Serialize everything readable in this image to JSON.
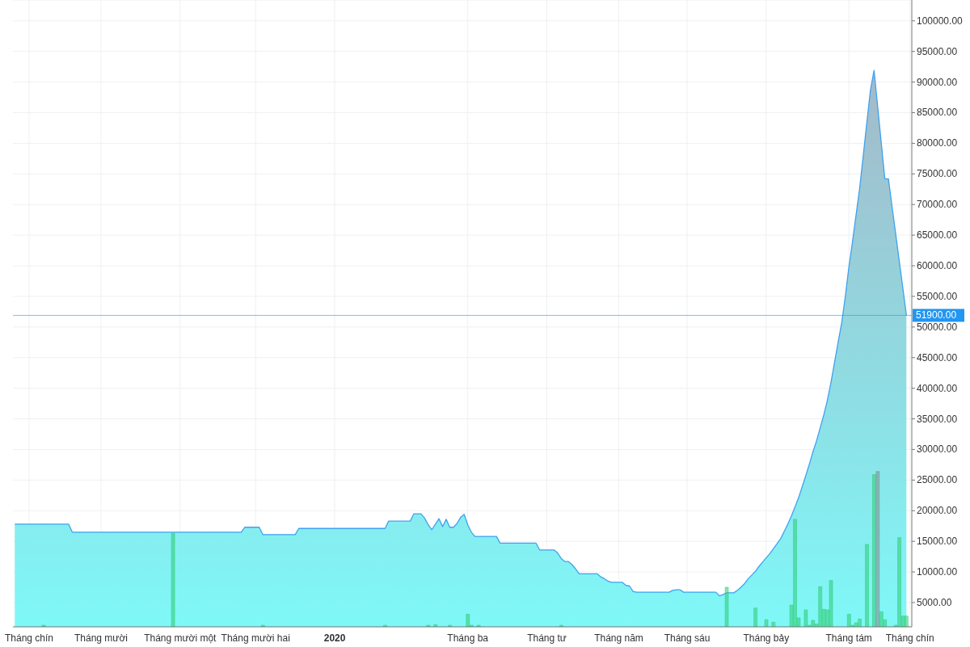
{
  "chart_data": {
    "type": "area",
    "categories": [
      null,
      null,
      null,
      null,
      "Tháng chín",
      null,
      null,
      null,
      null,
      null,
      null,
      null,
      null,
      null,
      null,
      null,
      null,
      null,
      null,
      null,
      null,
      null,
      null,
      null,
      "Tháng mười",
      null,
      null,
      null,
      null,
      null,
      null,
      null,
      null,
      null,
      null,
      null,
      null,
      null,
      null,
      null,
      null,
      null,
      null,
      null,
      null,
      null,
      "Tháng mười một",
      null,
      null,
      null,
      null,
      null,
      null,
      null,
      null,
      null,
      null,
      null,
      null,
      null,
      null,
      null,
      null,
      null,
      null,
      null,
      null,
      "Tháng mười hai",
      null,
      null,
      null,
      null,
      null,
      null,
      null,
      null,
      null,
      null,
      null,
      null,
      null,
      null,
      null,
      null,
      null,
      null,
      null,
      null,
      null,
      "2020",
      null,
      null,
      null,
      null,
      null,
      null,
      null,
      null,
      null,
      null,
      null,
      null,
      null,
      null,
      null,
      null,
      null,
      null,
      null,
      null,
      null,
      null,
      null,
      null,
      null,
      null,
      null,
      null,
      null,
      null,
      null,
      null,
      null,
      null,
      null,
      null,
      "Tháng ba",
      null,
      null,
      null,
      null,
      null,
      null,
      null,
      null,
      null,
      null,
      null,
      null,
      null,
      null,
      null,
      null,
      null,
      null,
      null,
      null,
      null,
      "Tháng tư",
      null,
      null,
      null,
      null,
      null,
      null,
      null,
      null,
      null,
      null,
      null,
      null,
      null,
      null,
      null,
      null,
      null,
      null,
      null,
      "Tháng năm",
      null,
      null,
      null,
      null,
      null,
      null,
      null,
      null,
      null,
      null,
      null,
      null,
      null,
      null,
      null,
      null,
      null,
      null,
      "Tháng sáu",
      null,
      null,
      null,
      null,
      null,
      null,
      null,
      null,
      null,
      null,
      null,
      null,
      null,
      null,
      null,
      null,
      null,
      null,
      null,
      null,
      null,
      "Tháng bảy",
      null,
      null,
      null,
      null,
      null,
      null,
      null,
      null,
      null,
      null,
      null,
      null,
      null,
      null,
      null,
      null,
      null,
      null,
      null,
      null,
      null,
      null,
      "Tháng tám",
      null,
      null,
      null,
      null,
      null,
      null,
      null,
      null,
      null,
      null,
      null,
      null,
      null,
      null,
      null,
      null,
      "Tháng chín"
    ],
    "series": [
      {
        "color": "#7ff8f8",
        "values": [
          17800,
          17800,
          17800,
          17800,
          17800,
          17800,
          17800,
          17800,
          17800,
          17800,
          17800,
          17800,
          17800,
          17800,
          17800,
          17800,
          16500,
          16500,
          16500,
          16500,
          16500,
          16500,
          16500,
          16500,
          16500,
          16500,
          16500,
          16500,
          16500,
          16500,
          16500,
          16500,
          16500,
          16500,
          16500,
          16500,
          16500,
          16500,
          16500,
          16500,
          16500,
          16500,
          16500,
          16500,
          16500,
          16500,
          16500,
          16500,
          16500,
          16500,
          16500,
          16500,
          16500,
          16500,
          16500,
          16500,
          16500,
          16500,
          16500,
          16500,
          16500,
          16500,
          16500,
          16500,
          17300,
          17300,
          17300,
          17300,
          17300,
          16100,
          16100,
          16100,
          16100,
          16100,
          16100,
          16100,
          16100,
          16100,
          16100,
          17100,
          17100,
          17100,
          17100,
          17100,
          17100,
          17100,
          17100,
          17100,
          17100,
          17100,
          17100,
          17100,
          17100,
          17100,
          17100,
          17100,
          17100,
          17100,
          17100,
          17100,
          17100,
          17100,
          17100,
          17100,
          18300,
          18300,
          18300,
          18300,
          18300,
          18300,
          18300,
          19500,
          19500,
          19500,
          18800,
          17700,
          16900,
          17800,
          18700,
          17400,
          18600,
          17300,
          17300,
          17900,
          18900,
          19400,
          17700,
          16500,
          15800,
          15800,
          15800,
          15800,
          15800,
          15800,
          15800,
          14700,
          14700,
          14700,
          14700,
          14700,
          14700,
          14700,
          14700,
          14700,
          14700,
          14700,
          13600,
          13600,
          13600,
          13600,
          13600,
          13100,
          12200,
          11700,
          11700,
          11200,
          10500,
          9700,
          9700,
          9700,
          9700,
          9700,
          9700,
          9200,
          8900,
          8500,
          8300,
          8300,
          8300,
          8300,
          7800,
          7700,
          6800,
          6700,
          6700,
          6700,
          6700,
          6700,
          6700,
          6700,
          6700,
          6700,
          6700,
          7000,
          7100,
          7100,
          6700,
          6700,
          6700,
          6700,
          6700,
          6700,
          6700,
          6700,
          6700,
          6700,
          6100,
          6300,
          6600,
          6600,
          6600,
          7000,
          7500,
          8100,
          8900,
          9500,
          10100,
          10900,
          11600,
          12300,
          13000,
          13800,
          14600,
          15400,
          16600,
          17800,
          19100,
          20600,
          22100,
          23900,
          25700,
          27600,
          29600,
          31400,
          33500,
          35600,
          38000,
          40900,
          44200,
          47500,
          50700,
          54900,
          59800,
          63900,
          68300,
          72700,
          78000,
          83400,
          88700,
          91900,
          86000,
          80100,
          74200,
          74200,
          69700,
          65300,
          60800,
          56400,
          51900,
          null
        ]
      },
      {
        "type": "bar",
        "values": [
          null,
          null,
          null,
          null,
          null,
          null,
          null,
          null,
          1300,
          null,
          null,
          null,
          null,
          null,
          null,
          null,
          null,
          null,
          null,
          null,
          null,
          null,
          null,
          null,
          null,
          null,
          null,
          null,
          null,
          null,
          null,
          null,
          null,
          null,
          null,
          null,
          null,
          null,
          null,
          null,
          null,
          null,
          null,
          null,
          16300,
          null,
          null,
          null,
          null,
          null,
          null,
          null,
          null,
          null,
          null,
          null,
          null,
          null,
          null,
          null,
          null,
          null,
          null,
          null,
          null,
          null,
          null,
          null,
          null,
          1300,
          null,
          null,
          null,
          null,
          null,
          null,
          null,
          null,
          null,
          null,
          null,
          null,
          null,
          null,
          null,
          null,
          null,
          null,
          null,
          null,
          null,
          null,
          null,
          null,
          null,
          null,
          null,
          null,
          null,
          null,
          null,
          null,
          null,
          1300,
          null,
          null,
          null,
          null,
          null,
          null,
          null,
          null,
          null,
          null,
          null,
          1300,
          null,
          1400,
          null,
          null,
          null,
          1300,
          null,
          null,
          null,
          null,
          3100,
          1300,
          null,
          1300,
          null,
          null,
          null,
          null,
          null,
          null,
          null,
          null,
          null,
          null,
          null,
          null,
          null,
          null,
          null,
          null,
          null,
          null,
          null,
          null,
          null,
          null,
          1300,
          null,
          null,
          null,
          null,
          null,
          null,
          null,
          null,
          null,
          null,
          null,
          null,
          null,
          null,
          null,
          null,
          null,
          null,
          null,
          null,
          null,
          null,
          null,
          null,
          null,
          null,
          null,
          null,
          null,
          null,
          null,
          null,
          null,
          null,
          null,
          null,
          null,
          null,
          null,
          null,
          null,
          null,
          null,
          null,
          null,
          7500,
          null,
          null,
          null,
          null,
          null,
          null,
          null,
          4100,
          null,
          null,
          2200,
          null,
          1800,
          null,
          null,
          null,
          null,
          4600,
          18600,
          2500,
          null,
          3800,
          1300,
          2100,
          1500,
          7600,
          3900,
          3800,
          8600,
          null,
          null,
          null,
          null,
          3100,
          1300,
          1700,
          2300,
          null,
          14500,
          null,
          25900,
          26400,
          3500,
          2200,
          null,
          null,
          1300,
          15600,
          2800,
          2800,
          null
        ],
        "colors": [
          null,
          null,
          null,
          null,
          null,
          null,
          null,
          null,
          "#2ecc71",
          null,
          null,
          null,
          null,
          null,
          null,
          null,
          null,
          null,
          null,
          null,
          null,
          null,
          null,
          null,
          null,
          null,
          null,
          null,
          null,
          null,
          null,
          null,
          null,
          null,
          null,
          null,
          null,
          null,
          null,
          null,
          null,
          null,
          null,
          null,
          "#2ecc71",
          null,
          null,
          null,
          null,
          null,
          null,
          null,
          null,
          null,
          null,
          null,
          null,
          null,
          null,
          null,
          null,
          null,
          null,
          null,
          null,
          null,
          null,
          null,
          null,
          "#2ecc71",
          null,
          null,
          null,
          null,
          null,
          null,
          null,
          null,
          null,
          null,
          null,
          null,
          null,
          null,
          null,
          null,
          null,
          null,
          null,
          null,
          null,
          null,
          null,
          null,
          null,
          null,
          null,
          null,
          null,
          null,
          null,
          null,
          null,
          "#2ecc71",
          null,
          null,
          null,
          null,
          null,
          null,
          null,
          null,
          null,
          null,
          null,
          "#2ecc71",
          null,
          "#2ecc71",
          null,
          null,
          null,
          "#2ecc71",
          null,
          null,
          null,
          null,
          "#2ecc71",
          "#2ecc71",
          null,
          "#2ecc71",
          null,
          null,
          null,
          null,
          null,
          null,
          null,
          null,
          null,
          null,
          null,
          null,
          null,
          null,
          null,
          null,
          null,
          null,
          null,
          null,
          null,
          null,
          "#2ecc71",
          null,
          null,
          null,
          null,
          null,
          null,
          null,
          null,
          null,
          null,
          null,
          null,
          null,
          null,
          null,
          null,
          null,
          null,
          null,
          null,
          null,
          null,
          null,
          null,
          null,
          null,
          null,
          null,
          null,
          null,
          null,
          null,
          null,
          null,
          null,
          null,
          null,
          null,
          null,
          null,
          null,
          null,
          null,
          null,
          null,
          "#2ecc71",
          null,
          null,
          null,
          null,
          null,
          null,
          null,
          "#2ecc71",
          null,
          null,
          "#2ecc71",
          null,
          "#2ecc71",
          null,
          null,
          null,
          null,
          "#2ecc71",
          "#2ecc71",
          "#2ecc71",
          null,
          "#2ecc71",
          "#2ecc71",
          "#2ecc71",
          "#2ecc71",
          "#2ecc71",
          "#2ecc71",
          "#2ecc71",
          "#2ecc71",
          null,
          null,
          null,
          null,
          "#2ecc71",
          "#2ecc71",
          "#2ecc71",
          "#2ecc71",
          null,
          "#2ecc71",
          null,
          "#2ecc71",
          "#7f8a8c",
          "#2ecc71",
          "#2ecc71",
          null,
          null,
          "#2ecc71",
          "#2ecc71",
          "#2ecc71",
          "#2ecc71",
          null
        ]
      }
    ],
    "ylim": [
      1040,
      103400
    ],
    "yticks": [
      {
        "value": 5000,
        "label": "5000.00"
      },
      {
        "value": 10000,
        "label": "10000.00"
      },
      {
        "value": 15000,
        "label": "15000.00"
      },
      {
        "value": 20000,
        "label": "20000.00"
      },
      {
        "value": 25000,
        "label": "25000.00"
      },
      {
        "value": 30000,
        "label": "30000.00"
      },
      {
        "value": 35000,
        "label": "35000.00"
      },
      {
        "value": 40000,
        "label": "40000.00"
      },
      {
        "value": 45000,
        "label": "45000.00"
      },
      {
        "value": 50000,
        "label": "50000.00"
      },
      {
        "value": 55000,
        "label": "55000.00"
      },
      {
        "value": 60000,
        "label": "60000.00"
      },
      {
        "value": 65000,
        "label": "65000.00"
      },
      {
        "value": 70000,
        "label": "70000.00"
      },
      {
        "value": 75000,
        "label": "75000.00"
      },
      {
        "value": 80000,
        "label": "80000.00"
      },
      {
        "value": 85000,
        "label": "85000.00"
      },
      {
        "value": 90000,
        "label": "90000.00"
      },
      {
        "value": 95000,
        "label": "95000.00"
      },
      {
        "value": 100000,
        "label": "100000.00"
      }
    ],
    "grid": true,
    "ref_lines": [
      {
        "axis": "y",
        "value": 51900,
        "label": "51900.00",
        "color": "#2196f3"
      }
    ]
  }
}
